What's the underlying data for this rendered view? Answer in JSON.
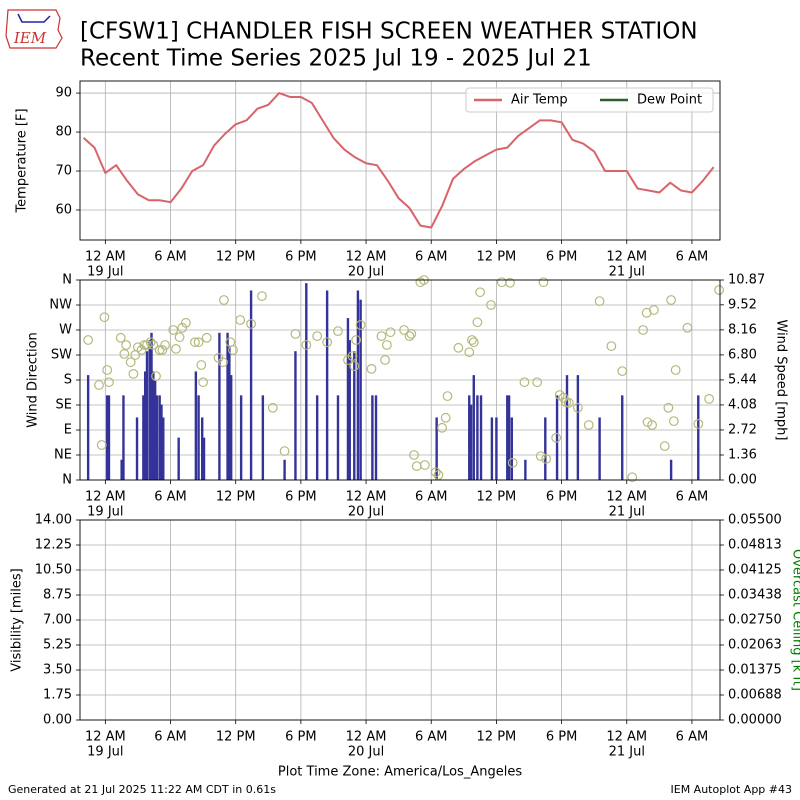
{
  "header": {
    "title": "[CFSW1] CHANDLER FISH SCREEN WEATHER STATION",
    "subtitle": "Recent Time Series 2025 Jul 19 - 2025 Jul 21",
    "logo": "IEM"
  },
  "footer": {
    "left": "Generated at 21 Jul 2025 11:22 AM CDT in 0.61s",
    "right": "IEM Autoplot App #43"
  },
  "chart_data": [
    {
      "type": "line",
      "ylabel": "Temperature [F]",
      "grid": true,
      "legend": "upper right",
      "xlim": [
        "2025-07-18T21:40",
        "2025-07-21T08:35"
      ],
      "xticks": [
        {
          "value": "2025-07-19T00:00",
          "label": "12 AM",
          "date": "19 Jul"
        },
        {
          "value": "2025-07-19T06:00",
          "label": "6 AM"
        },
        {
          "value": "2025-07-19T12:00",
          "label": "12 PM"
        },
        {
          "value": "2025-07-19T18:00",
          "label": "6 PM"
        },
        {
          "value": "2025-07-20T00:00",
          "label": "12 AM",
          "date": "20 Jul"
        },
        {
          "value": "2025-07-20T06:00",
          "label": "6 AM"
        },
        {
          "value": "2025-07-20T12:00",
          "label": "12 PM"
        },
        {
          "value": "2025-07-20T18:00",
          "label": "6 PM"
        },
        {
          "value": "2025-07-21T00:00",
          "label": "12 AM",
          "date": "21 Jul"
        },
        {
          "value": "2025-07-21T06:00",
          "label": "6 AM"
        }
      ],
      "ylim": [
        52.3,
        93.1
      ],
      "yticks": [
        60,
        70,
        80,
        90
      ],
      "x": [
        "2025-07-18T22:00",
        "2025-07-18T23:00",
        "2025-07-19T00:00",
        "2025-07-19T01:00",
        "2025-07-19T02:00",
        "2025-07-19T03:00",
        "2025-07-19T04:00",
        "2025-07-19T05:00",
        "2025-07-19T06:00",
        "2025-07-19T07:00",
        "2025-07-19T08:00",
        "2025-07-19T09:00",
        "2025-07-19T10:00",
        "2025-07-19T11:00",
        "2025-07-19T12:00",
        "2025-07-19T13:00",
        "2025-07-19T14:00",
        "2025-07-19T15:00",
        "2025-07-19T16:00",
        "2025-07-19T17:00",
        "2025-07-19T18:00",
        "2025-07-19T19:00",
        "2025-07-19T20:00",
        "2025-07-19T21:00",
        "2025-07-19T22:00",
        "2025-07-19T23:00",
        "2025-07-20T00:00",
        "2025-07-20T01:00",
        "2025-07-20T02:00",
        "2025-07-20T03:00",
        "2025-07-20T04:00",
        "2025-07-20T05:00",
        "2025-07-20T06:00",
        "2025-07-20T07:00",
        "2025-07-20T08:00",
        "2025-07-20T09:00",
        "2025-07-20T10:00",
        "2025-07-20T11:00",
        "2025-07-20T12:00",
        "2025-07-20T13:00",
        "2025-07-20T14:00",
        "2025-07-20T15:00",
        "2025-07-20T16:00",
        "2025-07-20T17:00",
        "2025-07-20T18:00",
        "2025-07-20T19:00",
        "2025-07-20T20:00",
        "2025-07-20T21:00",
        "2025-07-20T22:00",
        "2025-07-20T23:00",
        "2025-07-21T00:00",
        "2025-07-21T01:00",
        "2025-07-21T02:00",
        "2025-07-21T03:00",
        "2025-07-21T04:00",
        "2025-07-21T05:00",
        "2025-07-21T06:00",
        "2025-07-21T07:00",
        "2025-07-21T08:00"
      ],
      "series": [
        {
          "name": "Air Temp",
          "color": "#d9636a",
          "values": [
            78.5,
            76,
            69.5,
            71.5,
            67.5,
            64,
            62.5,
            62.5,
            62,
            65.5,
            70,
            71.5,
            76.5,
            79.5,
            82,
            83,
            86,
            87,
            90,
            89,
            89,
            87.5,
            83,
            78.5,
            75.5,
            73.5,
            72,
            71.5,
            67.5,
            63,
            60.5,
            56,
            55.5,
            61,
            68,
            70.5,
            72.5,
            74,
            75.5,
            76,
            79,
            81,
            83,
            83,
            82.5,
            78,
            77,
            75,
            70,
            70,
            70,
            65.5,
            65,
            64.5,
            67,
            65,
            64.5,
            67.5,
            71
          ]
        },
        {
          "name": "Dew Point",
          "color": "#2e5e2e",
          "values": [
            null,
            null,
            null,
            null,
            null,
            null,
            null,
            null,
            null,
            null,
            null,
            null,
            null,
            null,
            null,
            null,
            null,
            null,
            null,
            null,
            null,
            null,
            null,
            null,
            null,
            null,
            null,
            null,
            null,
            null,
            null,
            null,
            null,
            null,
            null,
            null,
            null,
            null,
            null,
            null,
            null,
            null,
            null,
            null,
            null,
            null,
            null,
            null,
            null,
            null,
            null,
            null,
            null,
            null,
            null,
            null,
            null,
            null,
            null
          ]
        }
      ]
    },
    {
      "type": "scatter",
      "ylabel": "Wind Direction",
      "y2label": "Wind Speed [mph]",
      "grid": true,
      "xlim": [
        "2025-07-18T21:40",
        "2025-07-21T08:35"
      ],
      "xticks": [
        {
          "value": "2025-07-19T00:00",
          "label": "12 AM",
          "date": "19 Jul"
        },
        {
          "value": "2025-07-19T06:00",
          "label": "6 AM"
        },
        {
          "value": "2025-07-19T12:00",
          "label": "12 PM"
        },
        {
          "value": "2025-07-19T18:00",
          "label": "6 PM"
        },
        {
          "value": "2025-07-20T00:00",
          "label": "12 AM",
          "date": "20 Jul"
        },
        {
          "value": "2025-07-20T06:00",
          "label": "6 AM"
        },
        {
          "value": "2025-07-20T12:00",
          "label": "12 PM"
        },
        {
          "value": "2025-07-20T18:00",
          "label": "6 PM"
        },
        {
          "value": "2025-07-21T00:00",
          "label": "12 AM",
          "date": "21 Jul"
        },
        {
          "value": "2025-07-21T06:00",
          "label": "6 AM"
        }
      ],
      "ylim": [
        0,
        360
      ],
      "yticks": [
        {
          "value": 0,
          "label": "N"
        },
        {
          "value": 45,
          "label": "NE"
        },
        {
          "value": 90,
          "label": "E"
        },
        {
          "value": 135,
          "label": "SE"
        },
        {
          "value": 180,
          "label": "S"
        },
        {
          "value": 225,
          "label": "SW"
        },
        {
          "value": 270,
          "label": "W"
        },
        {
          "value": 315,
          "label": "NW"
        },
        {
          "value": 360,
          "label": "N"
        }
      ],
      "y2lim": [
        0,
        10.87
      ],
      "y2ticks": [
        {
          "value": 0,
          "label": "0.00"
        },
        1.36,
        2.72,
        4.08,
        5.44,
        {
          "value": 6.8,
          "label": "6.80"
        },
        8.16,
        9.52,
        10.87
      ],
      "series": [
        {
          "type": "bar",
          "axis": "y2",
          "color": "#333399",
          "x": [
            "2025-07-18T22:25",
            "2025-07-19T00:10",
            "2025-07-19T00:20",
            "2025-07-19T01:30",
            "2025-07-19T01:40",
            "2025-07-19T02:55",
            "2025-07-19T03:30",
            "2025-07-19T03:40",
            "2025-07-19T03:50",
            "2025-07-19T04:05",
            "2025-07-19T04:15",
            "2025-07-19T04:25",
            "2025-07-19T04:35",
            "2025-07-19T04:45",
            "2025-07-19T05:00",
            "2025-07-19T05:10",
            "2025-07-19T05:20",
            "2025-07-19T06:45",
            "2025-07-19T08:20",
            "2025-07-19T08:35",
            "2025-07-19T08:55",
            "2025-07-19T09:05",
            "2025-07-19T10:30",
            "2025-07-19T11:15",
            "2025-07-19T11:25",
            "2025-07-19T11:35",
            "2025-07-19T12:30",
            "2025-07-19T13:25",
            "2025-07-19T14:30",
            "2025-07-19T16:30",
            "2025-07-19T17:30",
            "2025-07-19T18:30",
            "2025-07-19T19:30",
            "2025-07-19T20:25",
            "2025-07-19T21:25",
            "2025-07-19T22:20",
            "2025-07-19T22:30",
            "2025-07-19T22:55",
            "2025-07-19T23:15",
            "2025-07-19T23:30",
            "2025-07-20T00:35",
            "2025-07-20T00:55",
            "2025-07-20T06:30",
            "2025-07-20T09:30",
            "2025-07-20T09:40",
            "2025-07-20T09:55",
            "2025-07-20T10:15",
            "2025-07-20T10:35",
            "2025-07-20T11:35",
            "2025-07-20T12:00",
            "2025-07-20T13:00",
            "2025-07-20T13:10",
            "2025-07-20T13:25",
            "2025-07-20T14:40",
            "2025-07-20T16:30",
            "2025-07-20T17:35",
            "2025-07-20T18:30",
            "2025-07-20T19:30",
            "2025-07-20T21:30",
            "2025-07-20T23:35",
            "2025-07-21T04:05",
            "2025-07-21T06:35"
          ],
          "values": [
            5.7,
            4.6,
            4.6,
            1.1,
            4.6,
            3.4,
            4.6,
            5.9,
            7,
            7.6,
            8,
            5.9,
            5.4,
            4.6,
            4.6,
            4.1,
            3.4,
            2.3,
            5.9,
            4.6,
            3.4,
            2.3,
            8,
            8,
            7.3,
            5.7,
            4.6,
            10.3,
            4.6,
            1.1,
            7,
            10.7,
            4.6,
            10.3,
            4.6,
            8.8,
            7.6,
            7,
            10.3,
            9.8,
            4.6,
            4.6,
            3.4,
            4.6,
            4.1,
            5.7,
            4.6,
            4.6,
            3.4,
            3.4,
            4.6,
            4.6,
            3.4,
            1.1,
            3.4,
            4.6,
            5.7,
            5.7,
            3.4,
            4.6,
            1.1,
            4.6
          ]
        },
        {
          "type": "scatter",
          "axis": "y",
          "color": "#b5b87a",
          "x": [
            "2025-07-18T22:25",
            "2025-07-18T23:25",
            "2025-07-18T23:40",
            "2025-07-18T23:55",
            "2025-07-19T00:10",
            "2025-07-19T00:20",
            "2025-07-19T01:25",
            "2025-07-19T01:45",
            "2025-07-19T01:55",
            "2025-07-19T02:20",
            "2025-07-19T02:35",
            "2025-07-19T02:45",
            "2025-07-19T03:00",
            "2025-07-19T03:20",
            "2025-07-19T03:35",
            "2025-07-19T03:50",
            "2025-07-19T04:10",
            "2025-07-19T04:25",
            "2025-07-19T04:40",
            "2025-07-19T05:00",
            "2025-07-19T05:15",
            "2025-07-19T05:30",
            "2025-07-19T06:15",
            "2025-07-19T06:30",
            "2025-07-19T06:50",
            "2025-07-19T07:05",
            "2025-07-19T07:25",
            "2025-07-19T08:15",
            "2025-07-19T08:35",
            "2025-07-19T08:50",
            "2025-07-19T09:00",
            "2025-07-19T09:20",
            "2025-07-19T10:25",
            "2025-07-19T10:50",
            "2025-07-19T10:55",
            "2025-07-19T11:30",
            "2025-07-19T11:45",
            "2025-07-19T12:25",
            "2025-07-19T13:25",
            "2025-07-19T14:25",
            "2025-07-19T15:25",
            "2025-07-19T16:30",
            "2025-07-19T17:30",
            "2025-07-19T18:30",
            "2025-07-19T19:30",
            "2025-07-19T20:25",
            "2025-07-19T21:25",
            "2025-07-19T22:20",
            "2025-07-19T22:45",
            "2025-07-19T22:55",
            "2025-07-19T23:05",
            "2025-07-19T23:30",
            "2025-07-20T00:30",
            "2025-07-20T01:25",
            "2025-07-20T01:45",
            "2025-07-20T01:55",
            "2025-07-20T02:15",
            "2025-07-20T03:30",
            "2025-07-20T04:00",
            "2025-07-20T04:10",
            "2025-07-20T04:25",
            "2025-07-20T04:40",
            "2025-07-20T05:00",
            "2025-07-20T05:20",
            "2025-07-20T05:25",
            "2025-07-20T06:25",
            "2025-07-20T06:40",
            "2025-07-20T07:00",
            "2025-07-20T07:20",
            "2025-07-20T07:30",
            "2025-07-20T08:30",
            "2025-07-20T09:30",
            "2025-07-20T09:45",
            "2025-07-20T09:55",
            "2025-07-20T10:15",
            "2025-07-20T10:30",
            "2025-07-20T11:30",
            "2025-07-20T12:30",
            "2025-07-20T13:15",
            "2025-07-20T13:30",
            "2025-07-20T14:35",
            "2025-07-20T15:45",
            "2025-07-20T16:05",
            "2025-07-20T16:20",
            "2025-07-20T16:35",
            "2025-07-20T17:30",
            "2025-07-20T17:50",
            "2025-07-20T18:10",
            "2025-07-20T18:25",
            "2025-07-20T18:40",
            "2025-07-20T19:30",
            "2025-07-20T20:30",
            "2025-07-20T21:30",
            "2025-07-20T22:35",
            "2025-07-20T23:35",
            "2025-07-21T00:30",
            "2025-07-21T01:30",
            "2025-07-21T01:50",
            "2025-07-21T01:55",
            "2025-07-21T02:20",
            "2025-07-21T02:30",
            "2025-07-21T03:30",
            "2025-07-21T03:50",
            "2025-07-21T04:05",
            "2025-07-21T04:20",
            "2025-07-21T04:30",
            "2025-07-21T05:35",
            "2025-07-21T06:35",
            "2025-07-21T07:35",
            "2025-07-21T08:30"
          ],
          "values": [
            252,
            171,
            63,
            293,
            198,
            176,
            256,
            227,
            243,
            212,
            191,
            225,
            239,
            234,
            243,
            243,
            248,
            243,
            187,
            234,
            234,
            243,
            270,
            236,
            257,
            274,
            283,
            248,
            248,
            207,
            176,
            256,
            220,
            212,
            324,
            248,
            234,
            288,
            281,
            331,
            130,
            52,
            263,
            243,
            259,
            248,
            268,
            216,
            223,
            205,
            252,
            279,
            200,
            259,
            216,
            243,
            266,
            270,
            259,
            263,
            45,
            25,
            356,
            360,
            27,
            14,
            9,
            94,
            112,
            151,
            238,
            230,
            252,
            248,
            284,
            338,
            315,
            356,
            355,
            31,
            176,
            176,
            43,
            356,
            38,
            76,
            153,
            148,
            140,
            139,
            130,
            99,
            322,
            241,
            196,
            5,
            270,
            301,
            104,
            99,
            306,
            61,
            130,
            324,
            106,
            198,
            274,
            101,
            146,
            342
          ]
        }
      ]
    },
    {
      "type": "line",
      "ylabel": "Visibility [miles]",
      "y2label": "Overcast Ceiling [k ft]",
      "y2label_color": "#008000",
      "xlabel": "Plot Time Zone: America/Los_Angeles",
      "grid": true,
      "xlim": [
        "2025-07-18T21:40",
        "2025-07-21T08:35"
      ],
      "xticks": [
        {
          "value": "2025-07-19T00:00",
          "label": "12 AM",
          "date": "19 Jul"
        },
        {
          "value": "2025-07-19T06:00",
          "label": "6 AM"
        },
        {
          "value": "2025-07-19T12:00",
          "label": "12 PM"
        },
        {
          "value": "2025-07-19T18:00",
          "label": "6 PM"
        },
        {
          "value": "2025-07-20T00:00",
          "label": "12 AM",
          "date": "20 Jul"
        },
        {
          "value": "2025-07-20T06:00",
          "label": "6 AM"
        },
        {
          "value": "2025-07-20T12:00",
          "label": "12 PM"
        },
        {
          "value": "2025-07-20T18:00",
          "label": "6 PM"
        },
        {
          "value": "2025-07-21T00:00",
          "label": "12 AM",
          "date": "21 Jul"
        },
        {
          "value": "2025-07-21T06:00",
          "label": "6 AM"
        }
      ],
      "ylim": [
        0,
        14
      ],
      "yticks": [
        {
          "value": 0,
          "label": "0.00"
        },
        1.75,
        {
          "value": 3.5,
          "label": "3.50"
        },
        5.25,
        {
          "value": 7,
          "label": "7.00"
        },
        8.75,
        {
          "value": 10.5,
          "label": "10.50"
        },
        12.25,
        {
          "value": 14,
          "label": "14.00"
        }
      ],
      "y2lim": [
        0,
        0.055
      ],
      "y2ticks": [
        {
          "value": 0,
          "label": "0.00000"
        },
        {
          "value": 0.006875,
          "label": "0.00688"
        },
        {
          "value": 0.01375,
          "label": "0.01375"
        },
        {
          "value": 0.020625,
          "label": "0.02063"
        },
        {
          "value": 0.0275,
          "label": "0.02750"
        },
        {
          "value": 0.034375,
          "label": "0.03438"
        },
        {
          "value": 0.04125,
          "label": "0.04125"
        },
        {
          "value": 0.048125,
          "label": "0.04813"
        },
        {
          "value": 0.055,
          "label": "0.05500"
        }
      ],
      "series": []
    }
  ]
}
